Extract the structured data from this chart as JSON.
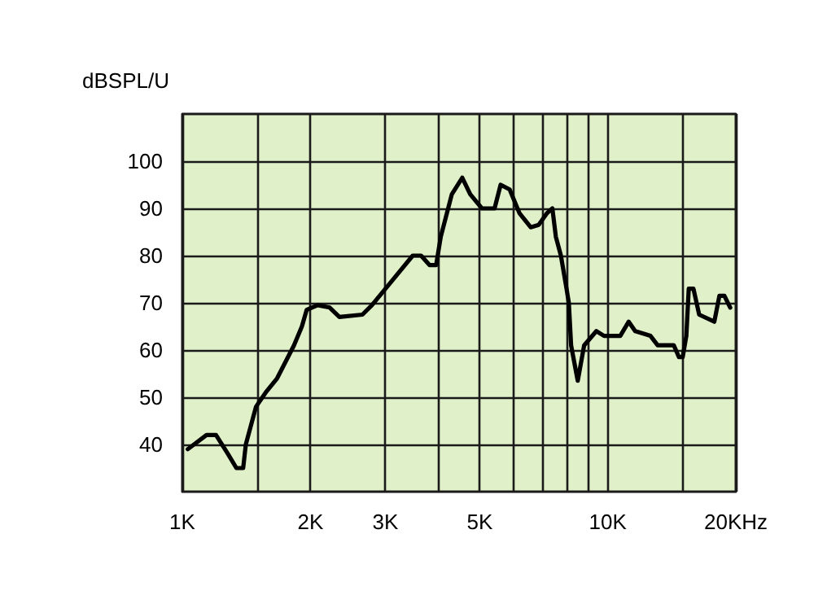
{
  "chart_data": {
    "type": "line",
    "ylabel": "dBSPL/U",
    "log": "x",
    "grid": true,
    "marker": "none",
    "line_style": "solid",
    "xlim": [
      1,
      20
    ],
    "xticks": [
      {
        "value": 1,
        "label": "1K"
      },
      {
        "value": 1.5,
        "label": null
      },
      {
        "value": 2,
        "label": "2K"
      },
      {
        "value": 3,
        "label": "3K"
      },
      {
        "value": 4,
        "label": null
      },
      {
        "value": 5,
        "label": "5K"
      },
      {
        "value": 6,
        "label": null
      },
      {
        "value": 7,
        "label": null
      },
      {
        "value": 8,
        "label": null
      },
      {
        "value": 9,
        "label": null
      },
      {
        "value": 10,
        "label": "10K"
      },
      {
        "value": 15,
        "label": null
      },
      {
        "value": 20,
        "label": "20KHz"
      }
    ],
    "ylim": [
      30,
      110
    ],
    "yticks": [
      40,
      50,
      60,
      70,
      80,
      90,
      100
    ],
    "series": [
      {
        "color": "#000000",
        "x": [
          1.03,
          1.14,
          1.2,
          1.28,
          1.34,
          1.39,
          1.41,
          1.49,
          1.57,
          1.67,
          1.83,
          1.91,
          1.96,
          2.08,
          2.22,
          2.34,
          2.65,
          2.79,
          3.1,
          3.48,
          3.64,
          3.81,
          3.95,
          4.05,
          4.3,
          4.55,
          4.75,
          5.06,
          5.42,
          5.6,
          5.88,
          6.2,
          6.59,
          6.88,
          7.2,
          7.41,
          7.55,
          7.76,
          8.0,
          8.1,
          8.2,
          8.5,
          8.8,
          9.4,
          9.8,
          10.7,
          11.2,
          11.6,
          12.6,
          13.1,
          14.3,
          14.7,
          15.0,
          15.3,
          15.5,
          15.9,
          16.4,
          17.8,
          18.3,
          18.8,
          19.4
        ],
        "values": [
          39,
          42,
          42,
          38,
          35,
          35,
          40,
          48,
          51,
          54,
          61,
          65,
          68.5,
          69.5,
          69,
          67,
          67.5,
          69.5,
          74.5,
          80,
          80,
          78,
          78,
          84,
          93,
          96.5,
          93,
          90,
          90,
          95,
          94,
          89,
          86,
          86.5,
          89,
          90,
          84,
          80,
          73,
          70,
          61,
          53.5,
          61,
          64,
          63,
          63,
          66,
          64,
          63,
          61,
          61,
          58.5,
          58.5,
          63,
          73,
          73,
          67.5,
          66,
          71.5,
          71.5,
          69
        ]
      }
    ]
  }
}
